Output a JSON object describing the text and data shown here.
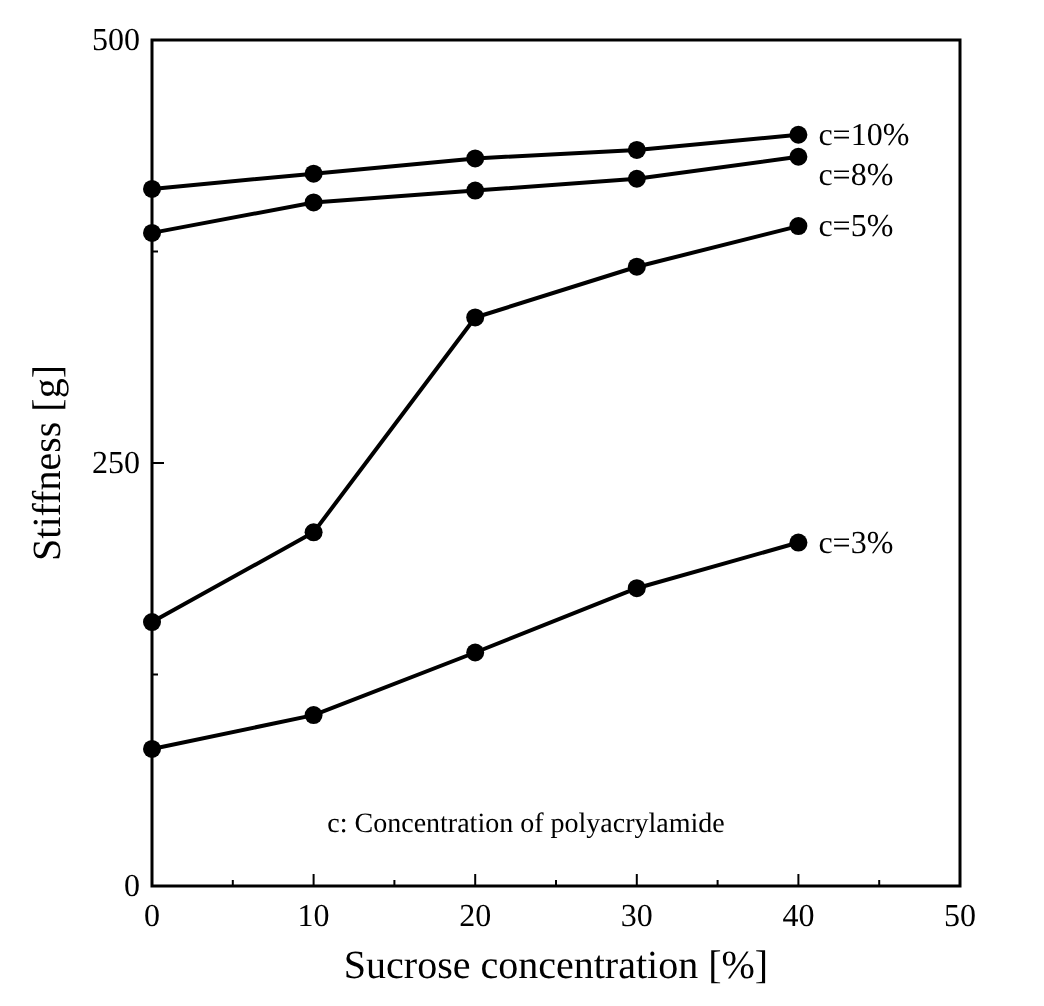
{
  "chart_data": {
    "type": "line",
    "xlabel": "Sucrose  concentration [%]",
    "ylabel": "Stiffness [g]",
    "x": [
      0,
      10,
      20,
      30,
      40
    ],
    "series": [
      {
        "name": "c=10%",
        "color": "#000000",
        "values": [
          412,
          421,
          430,
          435,
          444
        ]
      },
      {
        "name": "c=8%",
        "color": "#000000",
        "values": [
          386,
          404,
          411,
          418,
          431
        ]
      },
      {
        "name": "c=5%",
        "color": "#000000",
        "values": [
          156,
          209,
          336,
          366,
          390
        ]
      },
      {
        "name": "c=3%",
        "color": "#000000",
        "values": [
          81,
          101,
          138,
          176,
          203
        ]
      }
    ],
    "xlim": [
      0,
      50
    ],
    "ylim": [
      0,
      500
    ],
    "xticks": [
      0,
      {
        "value": 5,
        "label": null
      },
      10,
      {
        "value": 15,
        "label": null
      },
      20,
      {
        "value": 25,
        "label": null
      },
      30,
      {
        "value": 35,
        "label": null
      },
      40,
      {
        "value": 45,
        "label": null
      },
      50
    ],
    "yticks": [
      0,
      {
        "value": 125,
        "label": null
      },
      250,
      {
        "value": 375,
        "label": null
      },
      500
    ],
    "marker": "circle",
    "line_style": "solid",
    "grid": false,
    "annotations": [
      "c: Concentration of polyacrylamide"
    ]
  }
}
